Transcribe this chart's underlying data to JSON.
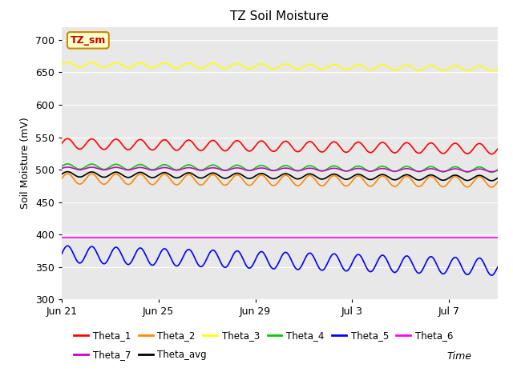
{
  "title": "TZ Soil Moisture",
  "xlabel": "Time",
  "ylabel": "Soil Moisture (mV)",
  "ylim": [
    300,
    720
  ],
  "yticks": [
    300,
    350,
    400,
    450,
    500,
    550,
    600,
    650,
    700
  ],
  "bg_color": "#e8e8e8",
  "fig_color": "#ffffff",
  "label_box": "TZ_sm",
  "label_box_bg": "#ffffcc",
  "label_box_fg": "#cc0000",
  "label_box_edge": "#cc8800",
  "series": [
    {
      "name": "Theta_1",
      "color": "#ff0000",
      "base": 540,
      "amp": 8,
      "drift": -8,
      "freq": 1.0
    },
    {
      "name": "Theta_2",
      "color": "#ff8800",
      "base": 486,
      "amp": 8,
      "drift": -5,
      "freq": 1.0
    },
    {
      "name": "Theta_3",
      "color": "#ffff00",
      "base": 662,
      "amp": 4,
      "drift": -6,
      "freq": 1.0
    },
    {
      "name": "Theta_4",
      "color": "#00cc00",
      "base": 505,
      "amp": 4,
      "drift": -5,
      "freq": 1.0
    },
    {
      "name": "Theta_5",
      "color": "#0000ff",
      "base": 370,
      "amp": 13,
      "drift": -20,
      "freq": 1.0
    },
    {
      "name": "Theta_6",
      "color": "#ff00ff",
      "base": 396,
      "amp": 0,
      "drift": 0,
      "freq": 0.0
    },
    {
      "name": "Theta_7",
      "color": "#cc00cc",
      "base": 502,
      "amp": 2,
      "drift": -3,
      "freq": 1.0
    },
    {
      "name": "Theta_avg",
      "color": "#000000",
      "base": 493,
      "amp": 4,
      "drift": -6,
      "freq": 1.0
    }
  ],
  "n_days": 18,
  "xtick_labels": [
    "Jun 21",
    "Jun 25",
    "Jun 29",
    "Jul 3",
    "Jul 7"
  ],
  "xtick_days": [
    0,
    4,
    8,
    12,
    16
  ],
  "legend_order": [
    "Theta_1",
    "Theta_2",
    "Theta_3",
    "Theta_4",
    "Theta_5",
    "Theta_6",
    "Theta_7",
    "Theta_avg"
  ]
}
